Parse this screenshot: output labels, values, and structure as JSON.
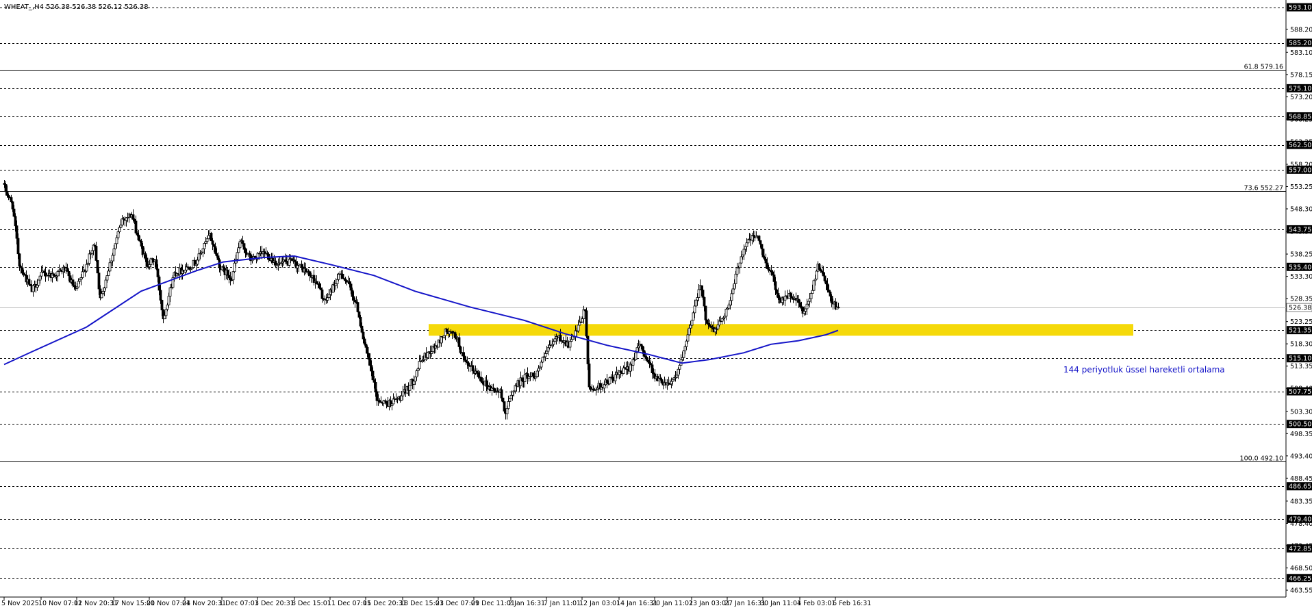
{
  "chart_data": {
    "type": "candlestick",
    "title": "WHEAT_,H4  526.38 526.38 526.12 526.38",
    "ylim": [
      463.55,
      593.8
    ],
    "y_ticks": [
      "588.20",
      "583.10",
      "578.15",
      "573.20",
      "568.25",
      "563.25",
      "558.20",
      "553.25",
      "548.30",
      "543.30",
      "538.25",
      "533.30",
      "528.35",
      "523.25",
      "518.30",
      "513.35",
      "508.40",
      "503.30",
      "498.35",
      "493.40",
      "488.45",
      "483.35",
      "478.40",
      "473.45",
      "468.50",
      "463.55"
    ],
    "x_ticks": [
      {
        "label": "5 Nov 2025",
        "i": 0
      },
      {
        "label": "10 Nov 07:01",
        "i": 27
      },
      {
        "label": "12 Nov 20:31",
        "i": 53
      },
      {
        "label": "17 Nov 15:01",
        "i": 80
      },
      {
        "label": "20 Nov 07:01",
        "i": 106
      },
      {
        "label": "24 Nov 20:31",
        "i": 132
      },
      {
        "label": "1 Dec 07:01",
        "i": 159
      },
      {
        "label": "3 Dec 20:31",
        "i": 185
      },
      {
        "label": "8 Dec 15:01",
        "i": 212
      },
      {
        "label": "11 Dec 07:01",
        "i": 238
      },
      {
        "label": "15 Dec 20:31",
        "i": 264
      },
      {
        "label": "18 Dec 15:01",
        "i": 291
      },
      {
        "label": "23 Dec 07:01",
        "i": 317
      },
      {
        "label": "29 Dec 11:01",
        "i": 343
      },
      {
        "label": "2 Jan 16:31",
        "i": 370
      },
      {
        "label": "7 Jan 11:01",
        "i": 396
      },
      {
        "label": "12 Jan 03:01",
        "i": 422
      },
      {
        "label": "14 Jan 16:31",
        "i": 449
      },
      {
        "label": "20 Jan 11:01",
        "i": 475
      },
      {
        "label": "23 Jan 03:01",
        "i": 502
      },
      {
        "label": "27 Jan 16:31",
        "i": 528
      },
      {
        "label": "30 Jan 11:01",
        "i": 554
      },
      {
        "label": "4 Feb 03:01",
        "i": 581
      },
      {
        "label": "6 Feb 16:31",
        "i": 607
      }
    ],
    "levels": [
      593.1,
      585.2,
      575.1,
      568.85,
      562.5,
      557.0,
      543.75,
      535.4,
      521.35,
      515.1,
      507.75,
      500.5,
      486.65,
      479.4,
      472.85,
      466.25
    ],
    "current_price": {
      "label": "526.38",
      "value": 526.38
    },
    "fib_levels": [
      {
        "label": "61.8 579.16",
        "value": 579.16
      },
      {
        "label": "73.6 552.27",
        "value": 552.27
      },
      {
        "label": "100.0 492.10",
        "value": 492.1
      }
    ],
    "zone": {
      "top": 522.7,
      "bottom": 520.1,
      "from_i": 310,
      "color": "#f5d90a"
    },
    "ema": {
      "label": "144 periyotluk üssel hareketli ortalama",
      "period": 144,
      "color": "#1515c8",
      "points": [
        [
          0,
          513.7
        ],
        [
          20,
          516.5
        ],
        [
          60,
          522.0
        ],
        [
          100,
          530.0
        ],
        [
          140,
          534.5
        ],
        [
          160,
          536.5
        ],
        [
          190,
          537.5
        ],
        [
          212,
          537.8
        ],
        [
          240,
          535.8
        ],
        [
          270,
          533.5
        ],
        [
          300,
          530.0
        ],
        [
          340,
          526.5
        ],
        [
          380,
          523.5
        ],
        [
          410,
          520.5
        ],
        [
          440,
          518.0
        ],
        [
          470,
          516.0
        ],
        [
          495,
          514.0
        ],
        [
          515,
          514.8
        ],
        [
          540,
          516.3
        ],
        [
          560,
          518.2
        ],
        [
          580,
          519.0
        ],
        [
          600,
          520.3
        ],
        [
          609,
          521.3
        ]
      ]
    },
    "path": [
      [
        0,
        553.0
      ],
      [
        6,
        549.0
      ],
      [
        11,
        536.0
      ],
      [
        20,
        530.0
      ],
      [
        28,
        534.0
      ],
      [
        36,
        533.5
      ],
      [
        44,
        535.0
      ],
      [
        52,
        530.0
      ],
      [
        60,
        536.0
      ],
      [
        66,
        540.5
      ],
      [
        70,
        528.0
      ],
      [
        76,
        535.0
      ],
      [
        86,
        546.0
      ],
      [
        93,
        547.0
      ],
      [
        98,
        541.5
      ],
      [
        104,
        536.0
      ],
      [
        110,
        537.0
      ],
      [
        116,
        524.0
      ],
      [
        124,
        534.0
      ],
      [
        132,
        535.0
      ],
      [
        140,
        536.5
      ],
      [
        150,
        542.5
      ],
      [
        158,
        535.0
      ],
      [
        166,
        533.0
      ],
      [
        172,
        541.0
      ],
      [
        180,
        537.0
      ],
      [
        190,
        538.5
      ],
      [
        200,
        536.0
      ],
      [
        210,
        536.5
      ],
      [
        220,
        534.5
      ],
      [
        228,
        532.0
      ],
      [
        234,
        527.5
      ],
      [
        240,
        531.0
      ],
      [
        246,
        534.0
      ],
      [
        252,
        531.0
      ],
      [
        258,
        526.0
      ],
      [
        263,
        518.0
      ],
      [
        268,
        512.0
      ],
      [
        272,
        506.0
      ],
      [
        280,
        505.0
      ],
      [
        290,
        506.5
      ],
      [
        298,
        510.0
      ],
      [
        304,
        514.5
      ],
      [
        310,
        516.5
      ],
      [
        316,
        518.0
      ],
      [
        322,
        521.0
      ],
      [
        330,
        520.0
      ],
      [
        336,
        514.0
      ],
      [
        344,
        512.0
      ],
      [
        354,
        508.5
      ],
      [
        362,
        507.5
      ],
      [
        366,
        503.0
      ],
      [
        372,
        508.5
      ],
      [
        380,
        511.0
      ],
      [
        388,
        511.5
      ],
      [
        396,
        516.5
      ],
      [
        404,
        520.0
      ],
      [
        412,
        518.0
      ],
      [
        418,
        521.0
      ],
      [
        424,
        526.0
      ],
      [
        427,
        508.0
      ],
      [
        436,
        509.0
      ],
      [
        446,
        511.0
      ],
      [
        456,
        513.0
      ],
      [
        464,
        518.0
      ],
      [
        470,
        514.5
      ],
      [
        476,
        510.5
      ],
      [
        484,
        509.5
      ],
      [
        490,
        511.0
      ],
      [
        496,
        516.0
      ],
      [
        502,
        524.0
      ],
      [
        508,
        532.0
      ],
      [
        512,
        524.0
      ],
      [
        518,
        521.0
      ],
      [
        524,
        524.0
      ],
      [
        530,
        527.5
      ],
      [
        536,
        536.0
      ],
      [
        542,
        541.0
      ],
      [
        550,
        542.5
      ],
      [
        554,
        537.5
      ],
      [
        560,
        534.0
      ],
      [
        566,
        528.0
      ],
      [
        572,
        529.0
      ],
      [
        578,
        528.0
      ],
      [
        584,
        525.0
      ],
      [
        588,
        528.0
      ],
      [
        594,
        536.0
      ],
      [
        600,
        532.0
      ],
      [
        604,
        527.5
      ],
      [
        609,
        526.38
      ]
    ],
    "bars_total": 610
  }
}
